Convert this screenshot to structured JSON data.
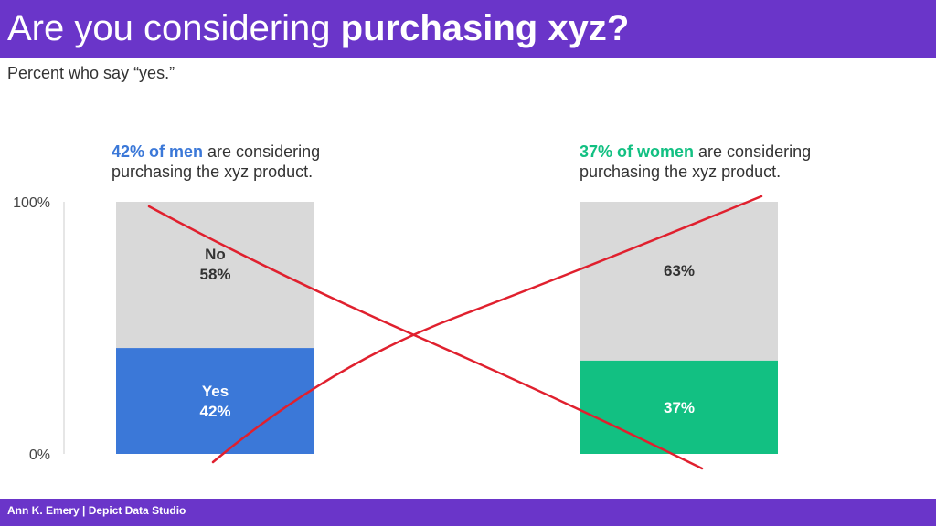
{
  "title": {
    "prefix": "Are you considering ",
    "emphasis": "purchasing xyz?"
  },
  "subtitle": "Percent who say “yes.”",
  "annotations": [
    {
      "highlight": "42% of men",
      "rest_line1": " are considering",
      "line2": "purchasing the xyz product.",
      "color": "#3b78d8"
    },
    {
      "highlight": "37% of women",
      "rest_line1": " are considering",
      "line2": "purchasing the xyz product.",
      "color": "#12c082"
    }
  ],
  "footer": "Ann K. Emery | Depict Data Studio",
  "chart_data": {
    "type": "bar",
    "stacked": true,
    "categories": [
      "Men",
      "Women"
    ],
    "series": [
      {
        "name": "Yes",
        "values": [
          42,
          37
        ],
        "colors": [
          "#3b78d8",
          "#12c082"
        ]
      },
      {
        "name": "No",
        "values": [
          58,
          63
        ],
        "color": "#d9d9d9"
      }
    ],
    "data_labels": {
      "yes": [
        "Yes\n42%",
        "37%"
      ],
      "no": [
        "No\n58%",
        "63%"
      ]
    },
    "yticks": [
      "0%",
      "100%"
    ],
    "ylim": [
      0,
      100
    ],
    "grid": false,
    "legend": "none",
    "cross_out_color": "#e0202e"
  }
}
